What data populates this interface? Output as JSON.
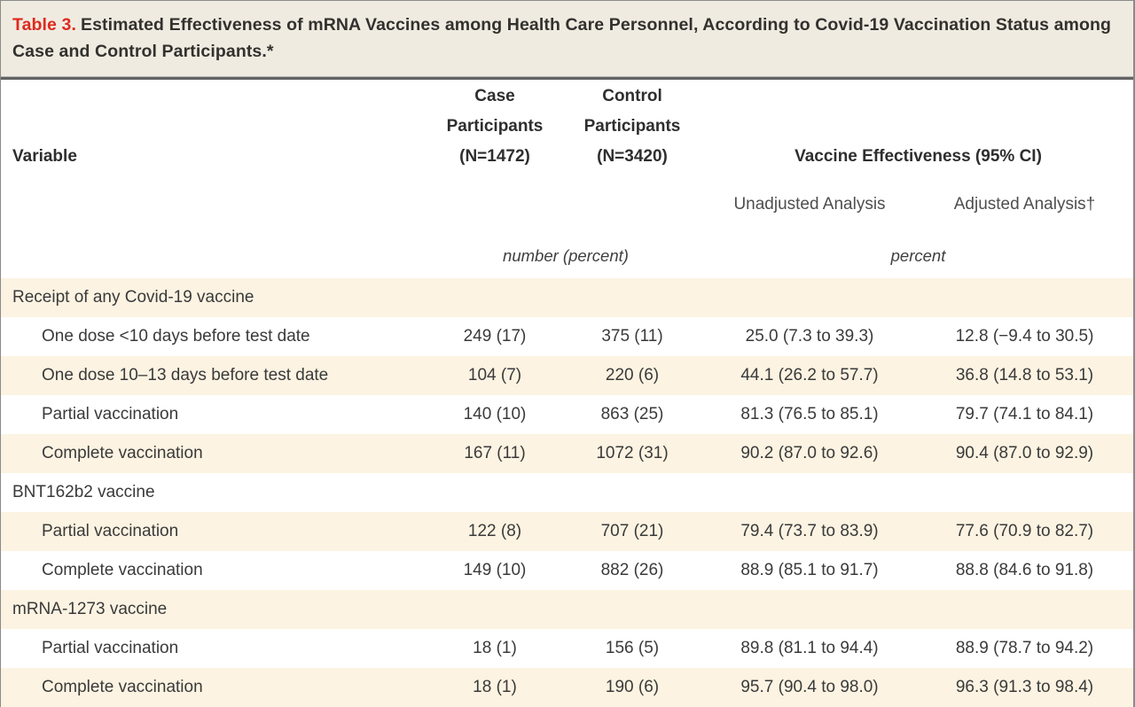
{
  "colors": {
    "accent_red": "#de2a1e",
    "stripe_cream": "#fcf3e2",
    "title_background": "#f0ebe1",
    "heavy_rule_gray": "#636363",
    "border_gray": "#8a8a8a"
  },
  "title": {
    "label": "Table 3.",
    "text": "Estimated Effectiveness of mRNA Vaccines among Health Care Personnel, According to Covid-19 Vaccination Status among Case and Control Participants.*"
  },
  "table": {
    "columns": {
      "variable": "Variable",
      "case_participants": "Case Participants (N=1472)",
      "control_participants": "Control Participants (N=3420)",
      "effectiveness_group": "Vaccine Effectiveness (95% CI)",
      "unadjusted": "Unadjusted Analysis",
      "adjusted": "Adjusted Analysis†",
      "counts_unit": "number (percent)",
      "effectiveness_unit": "percent"
    },
    "rows": [
      {
        "type": "section",
        "label": "Receipt of any Covid-19 vaccine",
        "case": "",
        "control": "",
        "unadjusted": "",
        "adjusted": ""
      },
      {
        "type": "data",
        "label": "One dose <10 days before test date",
        "case": "249 (17)",
        "control": "375 (11)",
        "unadjusted": "25.0 (7.3 to 39.3)",
        "adjusted": "12.8 (−9.4 to 30.5)"
      },
      {
        "type": "data",
        "label": "One dose 10–13 days before test date",
        "case": "104 (7)",
        "control": "220 (6)",
        "unadjusted": "44.1 (26.2 to 57.7)",
        "adjusted": "36.8 (14.8 to 53.1)"
      },
      {
        "type": "data",
        "label": "Partial vaccination",
        "case": "140 (10)",
        "control": "863 (25)",
        "unadjusted": "81.3 (76.5 to 85.1)",
        "adjusted": "79.7 (74.1 to 84.1)"
      },
      {
        "type": "data",
        "label": "Complete vaccination",
        "case": "167 (11)",
        "control": "1072 (31)",
        "unadjusted": "90.2 (87.0 to 92.6)",
        "adjusted": "90.4 (87.0 to 92.9)"
      },
      {
        "type": "section",
        "label": "BNT162b2 vaccine",
        "case": "",
        "control": "",
        "unadjusted": "",
        "adjusted": ""
      },
      {
        "type": "data",
        "label": "Partial vaccination",
        "case": "122 (8)",
        "control": "707 (21)",
        "unadjusted": "79.4 (73.7 to 83.9)",
        "adjusted": "77.6 (70.9 to 82.7)"
      },
      {
        "type": "data",
        "label": "Complete vaccination",
        "case": "149 (10)",
        "control": "882 (26)",
        "unadjusted": "88.9 (85.1 to 91.7)",
        "adjusted": "88.8 (84.6 to 91.8)"
      },
      {
        "type": "section",
        "label": "mRNA-1273 vaccine",
        "case": "",
        "control": "",
        "unadjusted": "",
        "adjusted": ""
      },
      {
        "type": "data",
        "label": "Partial vaccination",
        "case": "18 (1)",
        "control": "156 (5)",
        "unadjusted": "89.8 (81.1 to 94.4)",
        "adjusted": "88.9 (78.7 to 94.2)"
      },
      {
        "type": "data",
        "label": "Complete vaccination",
        "case": "18 (1)",
        "control": "190 (6)",
        "unadjusted": "95.7 (90.4 to 98.0)",
        "adjusted": "96.3 (91.3 to 98.4)"
      }
    ]
  }
}
